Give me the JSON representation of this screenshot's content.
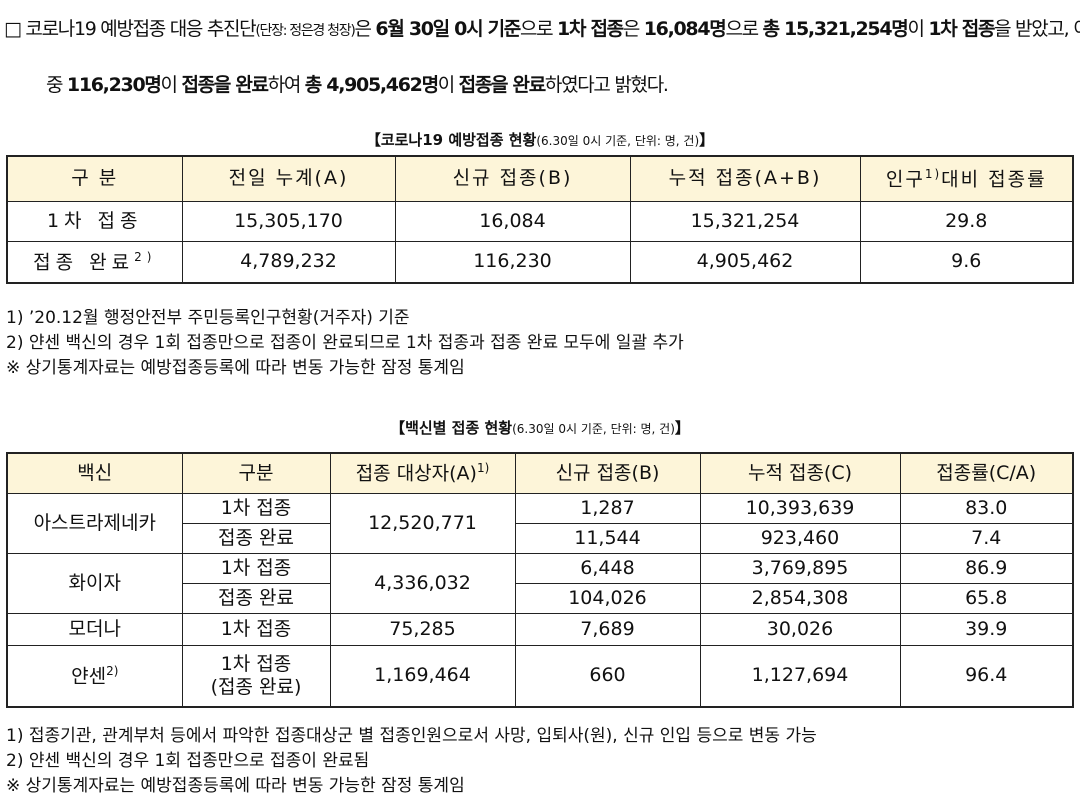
{
  "paragraph": {
    "marker": "□",
    "line1": [
      {
        "text": "코로나19 예방접종 대응 추진단"
      },
      {
        "text": "(단장: 정은경 청장)",
        "small": true
      },
      {
        "text": "은 "
      },
      {
        "text": "6월 30일 0시 기준",
        "bold": true
      },
      {
        "text": "으로 "
      },
      {
        "text": "1차 접종",
        "bold": true
      },
      {
        "text": "은 "
      },
      {
        "text": "16,084명",
        "bold": true
      },
      {
        "text": "으로 "
      },
      {
        "text": "총 15,321,254명",
        "bold": true
      },
      {
        "text": "이 "
      },
      {
        "text": "1차 접종",
        "bold": true
      },
      {
        "text": "을 받았고, 이"
      }
    ],
    "line2": [
      {
        "text": "중 "
      },
      {
        "text": "116,230명",
        "bold": true
      },
      {
        "text": "이 "
      },
      {
        "text": "접종을 완료",
        "bold": true
      },
      {
        "text": "하여 "
      },
      {
        "text": "총 4,905,462명",
        "bold": true
      },
      {
        "text": "이 "
      },
      {
        "text": "접종을 완료",
        "bold": true
      },
      {
        "text": "하였다고 밝혔다."
      }
    ]
  },
  "table1": {
    "title": {
      "main": "【코로나19 예방접종 현황",
      "note": "(6.30일 0시 기준, 단위: 명, 건)",
      "close": "】"
    },
    "header": [
      "구 분",
      "전일 누계(A)",
      "신규 접종(B)",
      "누적 접종(A+B)",
      {
        "text": "인구",
        "sup": "1)",
        "tail": "대비 접종률"
      }
    ],
    "rows": [
      [
        "1차 접종",
        "15,305,170",
        "16,084",
        "15,321,254",
        "29.8"
      ],
      [
        {
          "text": "접종 완료",
          "sup": "2)"
        },
        "4,789,232",
        "116,230",
        "4,905,462",
        "9.6"
      ]
    ],
    "notes": [
      "1) ’20.12월 행정안전부 주민등록인구현황(거주자) 기준",
      "2) 얀센 백신의 경우 1회 접종만으로 접종이 완료되므로 1차 접종과 접종 완료 모두에 일괄 추가",
      "※ 상기통계자료는 예방접종등록에 따라 변동 가능한 잠정 통계임"
    ]
  },
  "table2": {
    "title": {
      "main": "【백신별 접종 현황",
      "note": "(6.30일 0시 기준, 단위: 명, 건)",
      "close": "】"
    },
    "header": [
      "백신",
      "구분",
      {
        "text": "접종 대상자(A)",
        "sup": "1)"
      },
      "신규 접종(B)",
      "누적 접종(C)",
      "접종률(C/A)"
    ],
    "groups": [
      {
        "vaccine": "아스트라제네카",
        "target": "12,520,771",
        "rows": [
          [
            "1차 접종",
            "1,287",
            "10,393,639",
            "83.0"
          ],
          [
            "접종 완료",
            "11,544",
            "923,460",
            "7.4"
          ]
        ]
      },
      {
        "vaccine": "화이자",
        "target": "4,336,032",
        "rows": [
          [
            "1차 접종",
            "6,448",
            "3,769,895",
            "86.9"
          ],
          [
            "접종 완료",
            "104,026",
            "2,854,308",
            "65.8"
          ]
        ]
      },
      {
        "vaccine": "모더나",
        "target": "75,285",
        "rows": [
          [
            "1차 접종",
            "7,689",
            "30,026",
            "39.9"
          ]
        ]
      },
      {
        "vaccine": {
          "text": "얀센",
          "sup": "2)"
        },
        "target": "1,169,464",
        "rows": [
          [
            [
              "1차 접종",
              "(접종 완료)"
            ],
            "660",
            "1,127,694",
            "96.4"
          ]
        ]
      }
    ],
    "notes": [
      "1) 접종기관, 관계부처 등에서 파악한 접종대상군 별 접종인원으로서 사망, 입퇴사(원), 신규 인입 등으로 변동 가능",
      "2) 얀센 백신의 경우 1회 접종만으로 접종이 완료됨",
      "※ 상기통계자료는 예방접종등록에 따라 변동 가능한 잠정 통계임"
    ]
  }
}
